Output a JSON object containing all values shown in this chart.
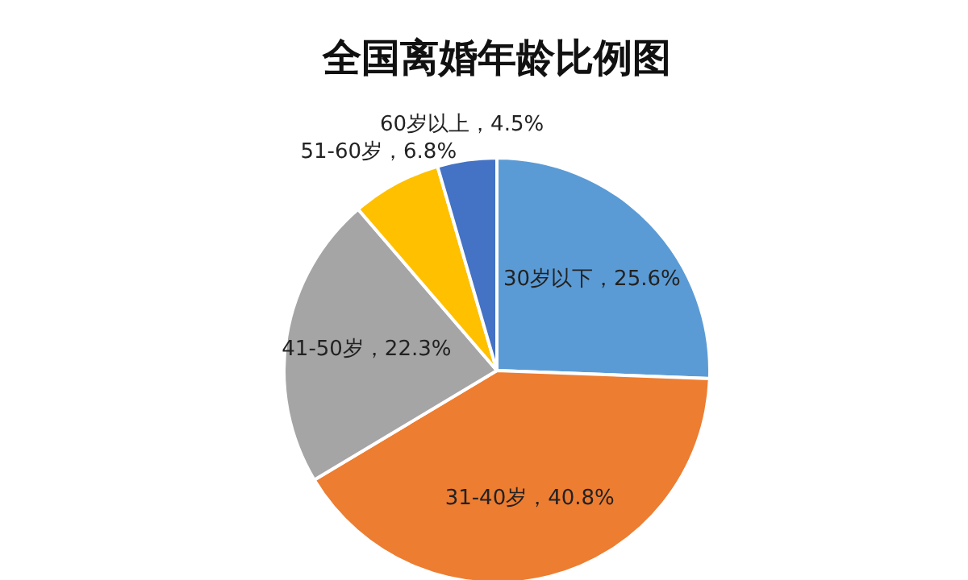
{
  "chart_data": {
    "type": "pie",
    "title": "全国离婚年龄比例图",
    "categories": [
      "30岁以下",
      "31-40岁",
      "41-50岁",
      "51-60岁",
      "60岁以上"
    ],
    "values": [
      25.6,
      40.8,
      22.3,
      6.8,
      4.5
    ],
    "colors": [
      "#5b9bd5",
      "#ed7d31",
      "#a5a5a5",
      "#ffc000",
      "#4472c4"
    ],
    "value_labels": [
      "25.6%",
      "40.8%",
      "22.3%",
      "6.8%",
      "4.5%"
    ]
  }
}
